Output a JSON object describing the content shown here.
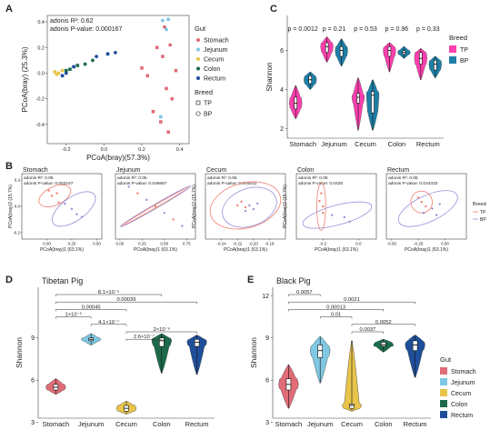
{
  "colors": {
    "Stomach": "#e06c78",
    "Jejunum": "#7ec8e3",
    "Cecum": "#e8c44a",
    "Colon": "#1b6b4a",
    "Rectum": "#1f4f9a",
    "TP": "#ff3fb0",
    "BP": "#1d7fa6",
    "ellipse_tp": "#f08070",
    "ellipse_bp": "#9a8fd8"
  },
  "panels": {
    "A": "A",
    "B": "B",
    "C": "C",
    "D": "D",
    "E": "E"
  },
  "chart_data": [
    {
      "id": "A",
      "type": "scatter",
      "xlabel": "PCoA(bray)(57.3%)",
      "ylabel": "PCoA(bray) (25.3%)",
      "xlim": [
        -0.3,
        0.45
      ],
      "ylim": [
        -0.55,
        0.45
      ],
      "xticks": [
        "-0.2",
        "0.0",
        "0.2",
        "0.4"
      ],
      "yticks": [
        "-0.4",
        "-0.2",
        "0.0",
        "0.2",
        "0.4"
      ],
      "annotation_1": "adonis R²: 0.62",
      "annotation_2": "adonis P-value: 0.000167",
      "legend_gut_title": "Gut",
      "legend_breed_title": "Breed",
      "legend_gut": [
        "Stomach",
        "Jejunum",
        "Cecum",
        "Colon",
        "Rectum"
      ],
      "legend_breed": [
        "TP",
        "BP"
      ],
      "points": [
        {
          "g": "Stomach",
          "b": "TP",
          "x": 0.2,
          "y": 0.04
        },
        {
          "g": "Stomach",
          "b": "TP",
          "x": 0.23,
          "y": -0.02
        },
        {
          "g": "Stomach",
          "b": "TP",
          "x": 0.28,
          "y": 0.2
        },
        {
          "g": "Stomach",
          "b": "TP",
          "x": 0.31,
          "y": 0.13
        },
        {
          "g": "Stomach",
          "b": "TP",
          "x": 0.33,
          "y": -0.12
        },
        {
          "g": "Stomach",
          "b": "TP",
          "x": 0.36,
          "y": -0.2
        },
        {
          "g": "Stomach",
          "b": "TP",
          "x": 0.38,
          "y": 0.02
        },
        {
          "g": "Stomach",
          "b": "TP",
          "x": 0.3,
          "y": -0.38
        },
        {
          "g": "Stomach",
          "b": "TP",
          "x": 0.26,
          "y": -0.3
        },
        {
          "g": "Stomach",
          "b": "TP",
          "x": 0.34,
          "y": -0.46
        },
        {
          "g": "Stomach",
          "b": "BP",
          "x": 0.32,
          "y": 0.36
        },
        {
          "g": "Stomach",
          "b": "BP",
          "x": 0.35,
          "y": 0.22
        },
        {
          "g": "Jejunum",
          "b": "BP",
          "x": 0.31,
          "y": 0.41
        },
        {
          "g": "Jejunum",
          "b": "BP",
          "x": 0.33,
          "y": 0.34
        },
        {
          "g": "Jejunum",
          "b": "TP",
          "x": 0.34,
          "y": 0.42
        },
        {
          "g": "Jejunum",
          "b": "TP",
          "x": 0.3,
          "y": -0.34
        },
        {
          "g": "Cecum",
          "b": "TP",
          "x": -0.26,
          "y": 0.01
        },
        {
          "g": "Cecum",
          "b": "TP",
          "x": -0.24,
          "y": 0.0
        },
        {
          "g": "Cecum",
          "b": "BP",
          "x": -0.22,
          "y": 0.02
        },
        {
          "g": "Cecum",
          "b": "BP",
          "x": -0.25,
          "y": -0.01
        },
        {
          "g": "Colon",
          "b": "TP",
          "x": -0.18,
          "y": 0.03
        },
        {
          "g": "Colon",
          "b": "TP",
          "x": -0.14,
          "y": 0.06
        },
        {
          "g": "Colon",
          "b": "BP",
          "x": -0.1,
          "y": 0.07
        },
        {
          "g": "Colon",
          "b": "BP",
          "x": -0.06,
          "y": 0.1
        },
        {
          "g": "Colon",
          "b": "TP",
          "x": -0.2,
          "y": 0.02
        },
        {
          "g": "Rectum",
          "b": "TP",
          "x": -0.22,
          "y": -0.02
        },
        {
          "g": "Rectum",
          "b": "BP",
          "x": -0.2,
          "y": 0.0
        },
        {
          "g": "Rectum",
          "b": "TP",
          "x": -0.16,
          "y": 0.05
        },
        {
          "g": "Rectum",
          "b": "BP",
          "x": -0.04,
          "y": 0.13
        },
        {
          "g": "Rectum",
          "b": "TP",
          "x": 0.02,
          "y": 0.15
        },
        {
          "g": "Rectum",
          "b": "BP",
          "x": 0.06,
          "y": 0.16
        }
      ]
    },
    {
      "id": "C",
      "type": "violin",
      "ylabel": "Shannon",
      "ylim": [
        1.5,
        7.8
      ],
      "yticks": [
        "2",
        "4",
        "6"
      ],
      "categories": [
        "Stomach",
        "Jejunum",
        "Cecum",
        "Colon",
        "Rectum"
      ],
      "pvalues": [
        "p = 0.0012",
        "p = 0.21",
        "p = 0.53",
        "p = 0.96",
        "p = 0.33"
      ],
      "legend_title": "Breed",
      "legend": [
        "TP",
        "BP"
      ],
      "groups": [
        {
          "tp": {
            "min": 2.5,
            "q1": 3.0,
            "med": 3.3,
            "q3": 3.6,
            "max": 4.2
          },
          "bp": {
            "min": 4.0,
            "q1": 4.3,
            "med": 4.5,
            "q3": 4.7,
            "max": 4.9
          }
        },
        {
          "tp": {
            "min": 5.4,
            "q1": 5.9,
            "med": 6.2,
            "q3": 6.4,
            "max": 6.7
          },
          "bp": {
            "min": 5.2,
            "q1": 5.7,
            "med": 6.0,
            "q3": 6.2,
            "max": 6.6
          }
        },
        {
          "tp": {
            "min": 1.9,
            "q1": 3.3,
            "med": 3.6,
            "q3": 3.8,
            "max": 4.6
          },
          "bp": {
            "min": 1.9,
            "q1": 2.8,
            "med": 3.7,
            "q3": 3.9,
            "max": 4.5
          }
        },
        {
          "tp": {
            "min": 4.9,
            "q1": 5.7,
            "med": 6.0,
            "q3": 6.2,
            "max": 6.4
          },
          "bp": {
            "min": 5.6,
            "q1": 5.8,
            "med": 5.9,
            "q3": 6.0,
            "max": 6.2
          }
        },
        {
          "tp": {
            "min": 4.5,
            "q1": 5.3,
            "med": 5.6,
            "q3": 5.9,
            "max": 6.1
          },
          "bp": {
            "min": 4.6,
            "q1": 5.0,
            "med": 5.3,
            "q3": 5.5,
            "max": 5.7
          }
        }
      ]
    },
    {
      "id": "B",
      "type": "scatter",
      "legend_title": "Breed",
      "legend": [
        "TP",
        "BP"
      ],
      "subplots": [
        {
          "title": "Stomach",
          "ann1": "adonis R²: 0.05",
          "ann2": "adonis P-value: 0.053167",
          "xlabel": "PCoA(bray)1 (63.1%)",
          "ylabel": "PCoA(bray)2 (15.7%)",
          "xlim": [
            -0.25,
            0.55
          ],
          "ylim": [
            -0.25,
            0.25
          ],
          "xticks": [
            0.0,
            0.25,
            0.5
          ],
          "xticklabels": [
            "0.00",
            "0.25",
            "0.50"
          ],
          "yticks": [
            -0.2,
            0.0,
            0.2
          ],
          "yticklabels": [
            "-0.2",
            "0.0",
            "0.2"
          ],
          "ell_tp": [
            0.08,
            0.08,
            0.17,
            0.07,
            -25
          ],
          "ell_bp": [
            0.27,
            -0.02,
            0.25,
            0.09,
            -35
          ],
          "pts_tp": [
            [
              0.02,
              0.12
            ],
            [
              0.05,
              0.08
            ],
            [
              0.12,
              0.03
            ],
            [
              0.1,
              0.1
            ]
          ],
          "pts_bp": [
            [
              0.18,
              0.02
            ],
            [
              0.25,
              -0.02
            ],
            [
              0.3,
              -0.06
            ],
            [
              0.35,
              -0.08
            ]
          ]
        },
        {
          "title": "Jejunum",
          "ann1": "adonis R²: 0.05",
          "ann2": "adonis P-value: 0.046667",
          "xlabel": "PCoA(bray)1 (63.1%)",
          "ylabel": "",
          "xlim": [
            -0.05,
            0.85
          ],
          "ylim": [
            -0.3,
            0.3
          ],
          "xticks": [
            0.0,
            0.25,
            0.5,
            0.75
          ],
          "xticklabels": [
            "0.00",
            "0.25",
            "0.50",
            "0.75"
          ],
          "yticks": [],
          "yticklabels": [],
          "ell_tp": [
            0.4,
            0.0,
            0.44,
            0.012,
            -30
          ],
          "ell_bp": [
            0.4,
            0.0,
            0.46,
            0.02,
            -30
          ],
          "pts_tp": [
            [
              0.2,
              0.12
            ],
            [
              0.4,
              0.0
            ],
            [
              0.6,
              -0.12
            ]
          ],
          "pts_bp": [
            [
              0.1,
              0.18
            ],
            [
              0.3,
              0.06
            ],
            [
              0.5,
              -0.06
            ],
            [
              0.7,
              -0.18
            ]
          ]
        },
        {
          "title": "Cecum",
          "ann1": "adonis R²: 0.05",
          "ann2": "adonis P-value: 0.044833",
          "xlabel": "PCoA(bray)1 (63.1%)",
          "ylabel": "PCoA(bray)2 (15.7%)",
          "xlim": [
            -0.26,
            -0.16
          ],
          "ylim": [
            -0.2,
            0.15
          ],
          "xticks": [
            -0.24,
            -0.22,
            -0.2,
            -0.18
          ],
          "xticklabels": [
            "-0.24",
            "-0.22",
            "-0.20",
            "-0.18"
          ],
          "yticks": [],
          "yticklabels": [],
          "ell_tp": [
            -0.21,
            -0.02,
            0.045,
            0.12,
            -15
          ],
          "ell_bp": [
            -0.205,
            -0.03,
            0.035,
            0.1,
            -20
          ],
          "pts_tp": [
            [
              -0.22,
              -0.02
            ],
            [
              -0.215,
              0.0
            ],
            [
              -0.21,
              -0.03
            ]
          ],
          "pts_bp": [
            [
              -0.205,
              -0.02
            ],
            [
              -0.2,
              -0.04
            ],
            [
              -0.195,
              -0.01
            ],
            [
              -0.21,
              -0.05
            ]
          ]
        },
        {
          "title": "Colon",
          "ann1": "adonis R²: 0.05",
          "ann2": "adonis P-value: 0.0425",
          "xlabel": "PCoA(bray)1 (63.1%)",
          "ylabel": "PCoA(bray)2 (15.7%)",
          "xlim": [
            -0.35,
            0.1
          ],
          "ylim": [
            -0.3,
            0.3
          ],
          "xticks": [
            -0.2,
            0.0
          ],
          "xticklabels": [
            "-0.2",
            "0.0"
          ],
          "yticks": [],
          "yticklabels": [],
          "ell_tp": [
            -0.21,
            0.0,
            0.025,
            0.22,
            0
          ],
          "ell_bp": [
            -0.12,
            -0.08,
            0.2,
            0.09,
            -15
          ],
          "pts_tp": [
            [
              -0.22,
              0.05
            ],
            [
              -0.2,
              0.0
            ],
            [
              -0.21,
              0.12
            ],
            [
              -0.2,
              -0.06
            ]
          ],
          "pts_bp": [
            [
              -0.15,
              -0.08
            ],
            [
              -0.08,
              -0.1
            ],
            [
              -0.05,
              -0.14
            ]
          ]
        },
        {
          "title": "Rectum",
          "ann1": "adonis R²: 0.05",
          "ann2": "adonis P-value: 0.044333",
          "xlabel": "PCoA(bray)1 (63.1%)",
          "ylabel": "",
          "xlim": [
            -0.55,
            0.2
          ],
          "ylim": [
            -0.3,
            0.3
          ],
          "xticks": [
            -0.5,
            -0.25,
            0.0
          ],
          "xticklabels": [
            "-0.50",
            "-0.25",
            "0.00"
          ],
          "yticks": [],
          "yticklabels": [],
          "ell_tp": [
            -0.22,
            0.04,
            0.1,
            0.1,
            -20
          ],
          "ell_bp": [
            -0.16,
            -0.02,
            0.3,
            0.12,
            -25
          ],
          "pts_tp": [
            [
              -0.25,
              0.08
            ],
            [
              -0.22,
              0.04
            ],
            [
              -0.18,
              0.0
            ]
          ],
          "pts_bp": [
            [
              -0.12,
              -0.02
            ],
            [
              -0.08,
              -0.08
            ],
            [
              -0.2,
              -0.06
            ],
            [
              -0.05,
              0.02
            ]
          ]
        }
      ]
    },
    {
      "id": "D",
      "type": "violin",
      "title": "Tibetan Pig",
      "ylabel": "Shannon",
      "ylim": [
        3.3,
        12.6
      ],
      "yticks": [
        "3",
        "6",
        "9"
      ],
      "categories": [
        "Stomach",
        "Jejunum",
        "Cecum",
        "Colon",
        "Rectum"
      ],
      "colors": [
        "Stomach",
        "Jejunum",
        "Cecum",
        "Colon",
        "Rectum"
      ],
      "groups": [
        {
          "min": 5.0,
          "q1": 5.3,
          "med": 5.5,
          "q3": 5.7,
          "max": 6.1
        },
        {
          "min": 8.5,
          "q1": 8.8,
          "med": 8.9,
          "q3": 9.0,
          "max": 9.3
        },
        {
          "min": 3.6,
          "q1": 3.8,
          "med": 4.0,
          "q3": 4.2,
          "max": 4.5
        },
        {
          "min": 6.5,
          "q1": 8.4,
          "med": 8.8,
          "q3": 9.0,
          "max": 9.3
        },
        {
          "min": 6.4,
          "q1": 8.4,
          "med": 8.7,
          "q3": 8.9,
          "max": 9.2
        }
      ],
      "brackets": [
        {
          "a": 0,
          "b": 3,
          "label": "8.1×10⁻⁶"
        },
        {
          "a": 0,
          "b": 4,
          "label": "0.00039"
        },
        {
          "a": 0,
          "b": 2,
          "label": "0.00045"
        },
        {
          "a": 0,
          "b": 1,
          "label": "1×10⁻⁵"
        },
        {
          "a": 1,
          "b": 2,
          "label": "4.1×10⁻⁷"
        },
        {
          "a": 2,
          "b": 4,
          "label": "2×10⁻⁶"
        },
        {
          "a": 2,
          "b": 3,
          "label": "2.6×10⁻⁷"
        }
      ]
    },
    {
      "id": "E",
      "type": "violin",
      "title": "Black Pig",
      "ylabel": "Shannon",
      "ylim": [
        3.3,
        12.6
      ],
      "yticks": [
        "3",
        "6",
        "9",
        "12"
      ],
      "categories": [
        "Stomach",
        "Jejunum",
        "Cecum",
        "Colon",
        "Rectum"
      ],
      "legend_title": "Gut",
      "legend": [
        "Stomach",
        "Jejunum",
        "Cecum",
        "Colon",
        "Rectum"
      ],
      "groups": [
        {
          "min": 4.0,
          "q1": 5.3,
          "med": 5.7,
          "q3": 6.1,
          "max": 7.1
        },
        {
          "min": 5.8,
          "q1": 7.6,
          "med": 8.1,
          "q3": 8.5,
          "max": 9.1
        },
        {
          "min": 3.8,
          "q1": 4.0,
          "med": 4.2,
          "q3": 4.3,
          "max": 8.8
        },
        {
          "min": 8.0,
          "q1": 8.4,
          "med": 8.5,
          "q3": 8.7,
          "max": 8.9
        },
        {
          "min": 6.2,
          "q1": 8.1,
          "med": 8.5,
          "q3": 8.8,
          "max": 9.2
        }
      ],
      "brackets": [
        {
          "a": 0,
          "b": 1,
          "label": "0.0057"
        },
        {
          "a": 0,
          "b": 4,
          "label": "0.0021"
        },
        {
          "a": 0,
          "b": 3,
          "label": "0.00013"
        },
        {
          "a": 1,
          "b": 2,
          "label": "0.01"
        },
        {
          "a": 2,
          "b": 4,
          "label": "0.0052"
        },
        {
          "a": 2,
          "b": 3,
          "label": "0.0037"
        }
      ]
    }
  ]
}
